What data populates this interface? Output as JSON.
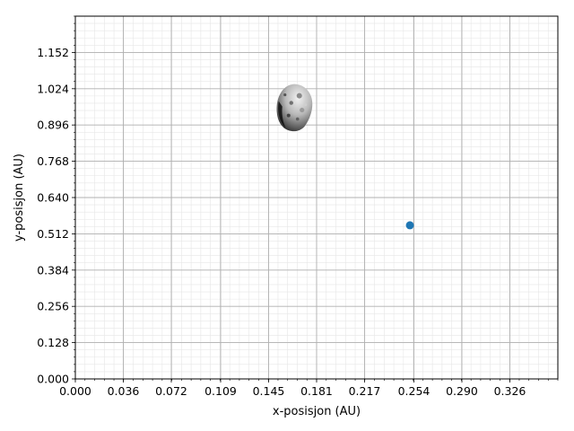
{
  "chart_data": {
    "type": "scatter",
    "xlabel": "x-posisjon (AU)",
    "ylabel": "y-posisjon (AU)",
    "xlim": [
      0.0,
      0.362
    ],
    "ylim": [
      0.0,
      1.28
    ],
    "x_ticks": [
      0.0,
      0.036,
      0.072,
      0.109,
      0.145,
      0.181,
      0.217,
      0.254,
      0.29,
      0.326
    ],
    "x_tick_labels": [
      "0.000",
      "0.036",
      "0.072",
      "0.109",
      "0.145",
      "0.181",
      "0.217",
      "0.254",
      "0.290",
      "0.326"
    ],
    "y_ticks": [
      0.0,
      0.128,
      0.256,
      0.384,
      0.512,
      0.64,
      0.768,
      0.896,
      1.024,
      1.152
    ],
    "y_tick_labels": [
      "0.000",
      "0.128",
      "0.256",
      "0.384",
      "0.512",
      "0.640",
      "0.768",
      "0.896",
      "1.024",
      "1.152"
    ],
    "grid": true,
    "minor_grid": true,
    "points": [
      {
        "x": 0.251,
        "y": 0.542,
        "color": "#1f77b4"
      }
    ],
    "image_marker": {
      "x": 0.164,
      "y": 0.955,
      "description_icon": "asteroid-image"
    }
  }
}
